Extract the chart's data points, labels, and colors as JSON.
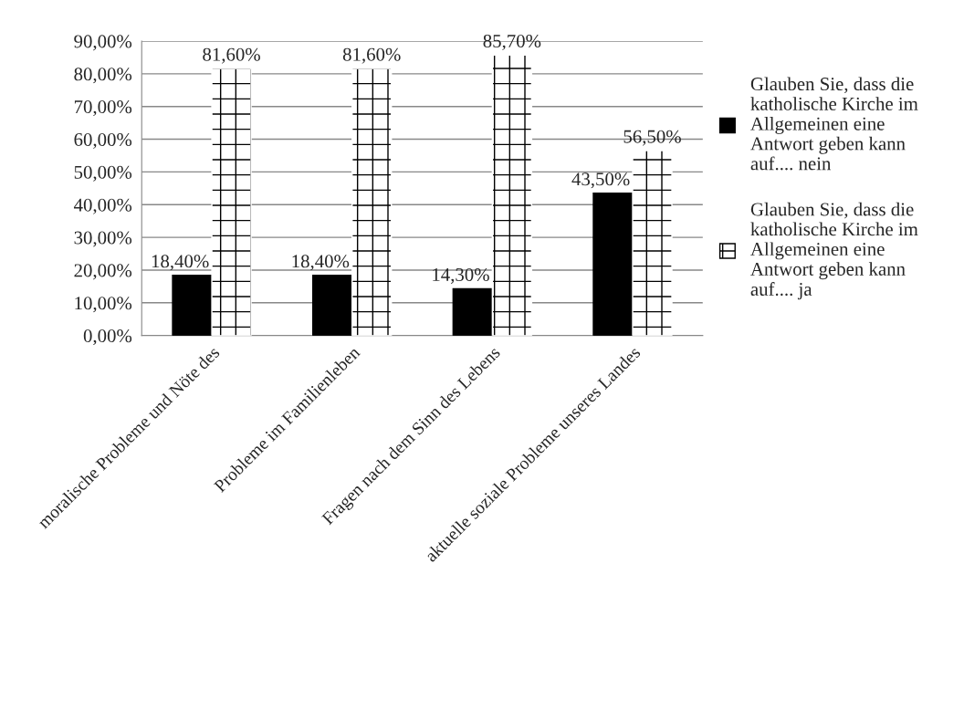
{
  "chart_data": {
    "type": "bar",
    "categories": [
      "moralische Probleme und Nöte des",
      "Probleme im Familienleben",
      "Fragen nach dem Sinn des Lebens",
      "aktuelle soziale Probleme unseres Landes"
    ],
    "series": [
      {
        "name": "Glauben Sie, dass die katholische Kirche im Allgemeinen eine Antwort geben kann auf.... nein",
        "color": "#000000",
        "values": [
          18.4,
          18.4,
          14.3,
          43.5
        ],
        "value_labels": [
          "18,40%",
          "18,40%",
          "14,30%",
          "43,50%"
        ]
      },
      {
        "name": "Glauben Sie, dass die katholische Kirche im Allgemeinen eine Antwort geben kann auf.... ja",
        "color": "#ffffff",
        "values": [
          81.6,
          81.6,
          85.7,
          56.5
        ],
        "value_labels": [
          "81,60%",
          "81,60%",
          "85,70%",
          "56,50%"
        ]
      }
    ],
    "ylim": [
      0,
      90
    ],
    "yticks": [
      {
        "value": 0,
        "label": "0,00%"
      },
      {
        "value": 10,
        "label": "10,00%"
      },
      {
        "value": 20,
        "label": "20,00%"
      },
      {
        "value": 30,
        "label": "30,00%"
      },
      {
        "value": 40,
        "label": "40,00%"
      },
      {
        "value": 50,
        "label": "50,00%"
      },
      {
        "value": 60,
        "label": "60,00%"
      },
      {
        "value": 70,
        "label": "70,00%"
      },
      {
        "value": 80,
        "label": "80,00%"
      },
      {
        "value": 90,
        "label": "90,00%"
      }
    ],
    "grid": "y",
    "legend": "right"
  }
}
